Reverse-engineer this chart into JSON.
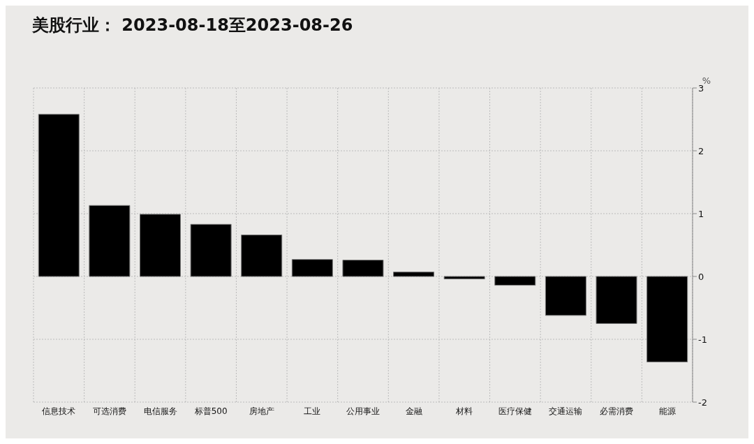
{
  "chart_data": {
    "type": "bar",
    "title": "美股行业： 2023-08-18至2023-08-26",
    "ylabel": "%",
    "categories": [
      "信息技术",
      "可选消费",
      "电信服务",
      "标普500",
      "房地产",
      "工业",
      "公用事业",
      "金融",
      "材料",
      "医疗保健",
      "交通运输",
      "必需消费",
      "能源"
    ],
    "values": [
      2.58,
      1.13,
      0.99,
      0.83,
      0.66,
      0.27,
      0.26,
      0.07,
      -0.04,
      -0.14,
      -0.62,
      -0.75,
      -1.36
    ],
    "color": "#000000",
    "ylim": [
      -2,
      3
    ],
    "yticks": [
      -2,
      -1,
      0,
      1,
      2,
      3
    ],
    "grid": true,
    "legend": false
  }
}
